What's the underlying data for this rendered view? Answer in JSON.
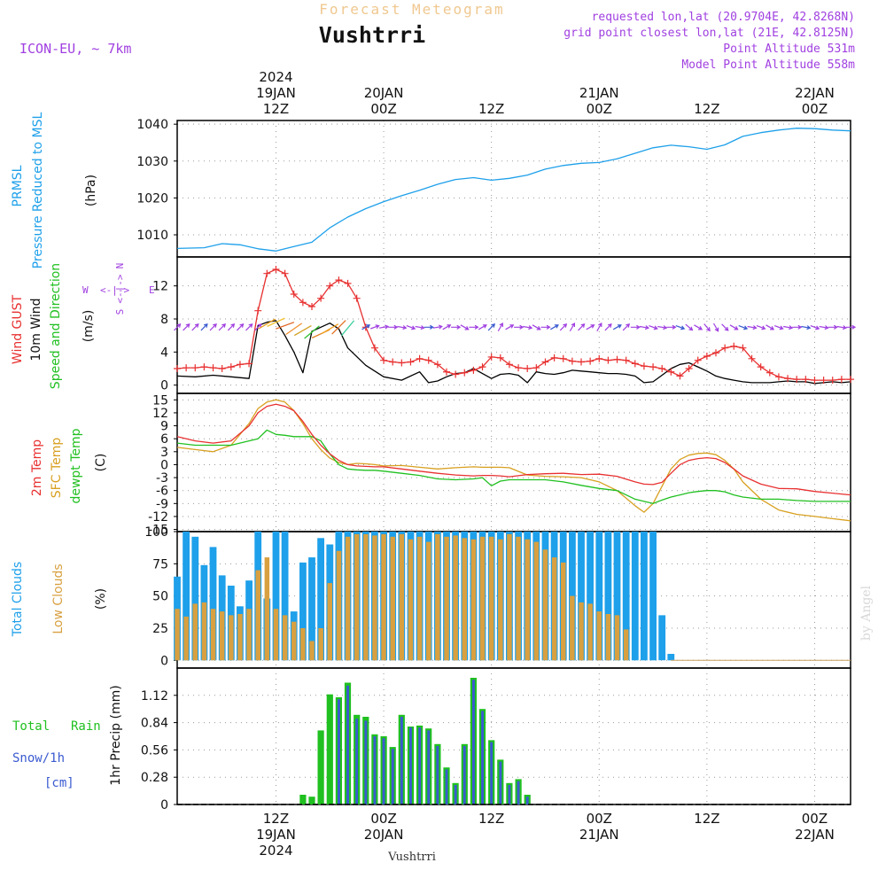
{
  "header": {
    "title": "Forecast Meteogram",
    "location": "Vushtrri",
    "model": "ICON-EU, ~ 7km",
    "requested": "requested lon,lat (20.9704E, 42.8268N)",
    "grid_point": "grid point closest lon,lat (21E, 42.8125N)",
    "point_altitude": "Point Altitude 531m",
    "model_altitude": "Model Point Altitude 558m",
    "footer_location": "Vushtrri",
    "credit": "by Angel"
  },
  "time_axis": {
    "top_labels": [
      {
        "h": 12,
        "lines": [
          "2024",
          "19JAN",
          "12Z"
        ]
      },
      {
        "h": 24,
        "lines": [
          "20JAN",
          "00Z"
        ]
      },
      {
        "h": 36,
        "lines": [
          "12Z"
        ]
      },
      {
        "h": 48,
        "lines": [
          "21JAN",
          "00Z"
        ]
      },
      {
        "h": 60,
        "lines": [
          "12Z"
        ]
      },
      {
        "h": 72,
        "lines": [
          "22JAN",
          "00Z"
        ]
      }
    ],
    "bottom_labels": [
      {
        "h": 12,
        "lines": [
          "12Z",
          "19JAN",
          "2024"
        ]
      },
      {
        "h": 24,
        "lines": [
          "00Z",
          "20JAN"
        ]
      },
      {
        "h": 36,
        "lines": [
          "12Z"
        ]
      },
      {
        "h": 48,
        "lines": [
          "00Z",
          "21JAN"
        ]
      },
      {
        "h": 60,
        "lines": [
          "12Z"
        ]
      },
      {
        "h": 72,
        "lines": [
          "00Z",
          "22JAN"
        ]
      }
    ]
  },
  "panels": {
    "pressure": {
      "label1": "PRMSL",
      "label2": "Pressure Reduced to MSL",
      "unit": "(hPa)",
      "ticks": [
        "1010",
        "1020",
        "1030",
        "1040"
      ]
    },
    "wind": {
      "label_gust": "Wind GUST",
      "label_wind": "10m Wind",
      "label_dir": "Speed and Direction",
      "unit": "(m/s)",
      "ticks": [
        "0",
        "4",
        "8",
        "12"
      ],
      "compass": {
        "n": "N",
        "s": "S",
        "w": "W",
        "e": "E"
      }
    },
    "temp": {
      "label_2m": "2m Temp",
      "label_sfc": "SFC Temp",
      "label_dew": "dewpt Temp",
      "unit": "(C)",
      "ticks": [
        "-15",
        "-12",
        "-9",
        "-6",
        "-3",
        "0",
        "3",
        "6",
        "9",
        "12",
        "15"
      ]
    },
    "clouds": {
      "label_total": "Total Clouds",
      "label_low": "Low Clouds",
      "unit": "(%)",
      "ticks": [
        "0",
        "25",
        "50",
        "75",
        "100"
      ]
    },
    "precip": {
      "label_total": "Total",
      "label_rain": "Rain",
      "label_snow": "Snow/1h",
      "label_cm": "[cm]",
      "unit": "1hr Precip (mm)",
      "ticks": [
        "0",
        "0.28",
        "0.56",
        "0.84",
        "1.12"
      ]
    }
  },
  "colors": {
    "pressure": "#1ea0ea",
    "gust": "#e83030",
    "wind": "#000000",
    "t2m": "#e83030",
    "sfc": "#d8a020",
    "dew": "#20c020",
    "total_cloud": "#1ea0ea",
    "low_cloud": "#d8a040",
    "precip_total": "#20c020",
    "snow": "#3a5ad0",
    "purple": "#a040e0",
    "grid": "#9a9a9a"
  },
  "chart_data": {
    "type": "line",
    "x_unit": "forecast hour from 19JAN 00Z",
    "x_range": [
      1,
      76
    ],
    "pressure": {
      "ylim": [
        1004,
        1041
      ],
      "x": [
        1,
        4,
        6,
        8,
        10,
        12,
        14,
        16,
        18,
        20,
        22,
        24,
        26,
        28,
        30,
        32,
        34,
        36,
        38,
        40,
        42,
        44,
        46,
        48,
        50,
        52,
        54,
        56,
        58,
        60,
        62,
        64,
        66,
        68,
        70,
        72,
        74,
        76
      ],
      "values": [
        1006.3,
        1006.5,
        1007.6,
        1007.3,
        1006.2,
        1005.6,
        1006.8,
        1008.0,
        1011.9,
        1014.8,
        1017.1,
        1019.0,
        1020.6,
        1022.1,
        1023.7,
        1025.0,
        1025.5,
        1024.8,
        1025.3,
        1026.2,
        1027.8,
        1028.8,
        1029.4,
        1029.6,
        1030.6,
        1032.1,
        1033.6,
        1034.3,
        1033.9,
        1033.2,
        1034.4,
        1036.7,
        1037.7,
        1038.4,
        1038.9,
        1038.8,
        1038.4,
        1038.2
      ]
    },
    "wind": {
      "ylim": [
        -1,
        15.5
      ],
      "gust_x": [
        1,
        2,
        3,
        4,
        5,
        6,
        7,
        8,
        9,
        10,
        11,
        12,
        13,
        14,
        15,
        16,
        17,
        18,
        19,
        20,
        21,
        22,
        23,
        24,
        25,
        26,
        27,
        28,
        29,
        30,
        31,
        32,
        33,
        34,
        35,
        36,
        37,
        38,
        39,
        40,
        41,
        42,
        43,
        44,
        45,
        46,
        47,
        48,
        49,
        50,
        51,
        52,
        53,
        54,
        55,
        56,
        57,
        58,
        59,
        60,
        61,
        62,
        63,
        64,
        65,
        66,
        67,
        68,
        69,
        70,
        71,
        72,
        73,
        74,
        75,
        76
      ],
      "gust": [
        2.0,
        2.1,
        2.1,
        2.2,
        2.1,
        2.0,
        2.2,
        2.5,
        2.6,
        9.0,
        13.5,
        14.0,
        13.5,
        11.0,
        10.0,
        9.5,
        10.5,
        12.0,
        12.7,
        12.3,
        10.5,
        7.0,
        4.5,
        3.0,
        2.8,
        2.7,
        2.8,
        3.2,
        3.0,
        2.5,
        1.6,
        1.3,
        1.5,
        1.8,
        2.2,
        3.4,
        3.3,
        2.5,
        2.1,
        2.0,
        2.1,
        2.8,
        3.3,
        3.2,
        2.9,
        2.8,
        2.9,
        3.2,
        3.0,
        3.1,
        3.0,
        2.6,
        2.3,
        2.2,
        2.0,
        1.6,
        1.1,
        2.0,
        3.0,
        3.5,
        3.9,
        4.5,
        4.7,
        4.5,
        3.2,
        2.2,
        1.5,
        1.0,
        0.8,
        0.7,
        0.7,
        0.6,
        0.6,
        0.6,
        0.7,
        0.7
      ],
      "wind_x": [
        1,
        3,
        5,
        7,
        9,
        10,
        11,
        12,
        13,
        14,
        15,
        16,
        17,
        18,
        19,
        20,
        22,
        24,
        26,
        28,
        29,
        30,
        31,
        32,
        33,
        34,
        35,
        36,
        37,
        38,
        39,
        40,
        41,
        42,
        43,
        44,
        45,
        46,
        47,
        48,
        49,
        50,
        51,
        52,
        53,
        54,
        55,
        56,
        57,
        58,
        59,
        60,
        61,
        62,
        63,
        64,
        65,
        66,
        67,
        68,
        69,
        70,
        71,
        72,
        73,
        74,
        75,
        76
      ],
      "wind": [
        1.1,
        1.0,
        1.2,
        1.0,
        0.8,
        7.2,
        7.6,
        7.8,
        6.0,
        4.0,
        1.5,
        6.5,
        7.0,
        7.5,
        6.8,
        4.5,
        2.4,
        1.0,
        0.6,
        1.6,
        0.3,
        0.5,
        1.0,
        1.4,
        1.5,
        2.0,
        1.4,
        0.8,
        1.3,
        1.4,
        1.2,
        0.3,
        1.6,
        1.4,
        1.3,
        1.5,
        1.8,
        1.7,
        1.6,
        1.5,
        1.4,
        1.4,
        1.3,
        1.1,
        0.3,
        0.4,
        1.2,
        2.0,
        2.5,
        2.7,
        2.2,
        1.7,
        1.1,
        0.8,
        0.6,
        0.4,
        0.3,
        0.3,
        0.3,
        0.4,
        0.5,
        0.4,
        0.4,
        0.2,
        0.3,
        0.4,
        0.3,
        0.4
      ],
      "arrows_x": [
        1,
        2,
        3,
        4,
        5,
        6,
        7,
        8,
        9,
        10,
        22,
        23,
        24,
        25,
        26,
        27,
        28,
        29,
        30,
        31,
        32,
        33,
        34,
        35,
        36,
        37,
        38,
        39,
        40,
        41,
        42,
        43,
        44,
        45,
        46,
        47,
        48,
        49,
        50,
        51,
        52,
        53,
        54,
        55,
        56,
        57,
        58,
        59,
        60,
        61,
        62,
        63,
        64,
        65,
        66,
        67,
        68,
        69,
        70,
        71,
        72,
        73,
        74,
        75,
        76
      ],
      "arrows_dir": [
        45,
        45,
        45,
        45,
        45,
        45,
        45,
        45,
        45,
        45,
        60,
        70,
        80,
        90,
        100,
        110,
        100,
        90,
        80,
        60,
        90,
        120,
        90,
        60,
        45,
        30,
        60,
        90,
        100,
        120,
        90,
        60,
        45,
        30,
        45,
        60,
        30,
        45,
        60,
        45,
        90,
        100,
        110,
        100,
        90,
        110,
        130,
        120,
        140,
        150,
        135,
        120,
        110,
        100,
        110,
        120,
        110,
        100,
        90,
        100,
        110,
        100,
        90,
        100,
        90
      ]
    },
    "temp": {
      "ylim": [
        -15.5,
        16.5
      ],
      "x": [
        1,
        3,
        5,
        7,
        9,
        10,
        11,
        12,
        13,
        14,
        15,
        16,
        17,
        18,
        19,
        20,
        21,
        22,
        23,
        24,
        26,
        28,
        30,
        32,
        34,
        35,
        36,
        37,
        38,
        40,
        42,
        44,
        46,
        48,
        50,
        52,
        53,
        54,
        55,
        56,
        57,
        58,
        59,
        60,
        61,
        62,
        63,
        64,
        66,
        68,
        70,
        72,
        74,
        76
      ],
      "t2m": [
        6.5,
        5.5,
        5.0,
        5.5,
        9.0,
        12.0,
        13.5,
        14.0,
        13.5,
        12.5,
        10.0,
        7.0,
        4.5,
        2.5,
        1.0,
        0.0,
        -0.3,
        -0.4,
        -0.5,
        -0.5,
        -1.0,
        -1.5,
        -2.0,
        -2.4,
        -2.6,
        -2.5,
        -2.5,
        -2.6,
        -2.8,
        -2.3,
        -2.1,
        -2.0,
        -2.3,
        -2.2,
        -2.7,
        -4.0,
        -4.5,
        -4.6,
        -4.1,
        -2.0,
        0.0,
        1.0,
        1.4,
        1.6,
        1.4,
        0.5,
        -1.0,
        -2.6,
        -4.5,
        -5.5,
        -5.6,
        -6.2,
        -6.6,
        -7.0
      ],
      "sfc": [
        4.0,
        3.5,
        3.0,
        4.5,
        9.5,
        13.0,
        14.5,
        15.0,
        14.5,
        12.5,
        9.5,
        6.0,
        3.5,
        1.5,
        0.5,
        0.0,
        0.3,
        0.2,
        0.0,
        -0.3,
        -0.2,
        -0.6,
        -1.0,
        -0.7,
        -0.5,
        -0.6,
        -0.6,
        -0.6,
        -0.7,
        -2.4,
        -2.7,
        -2.8,
        -3.0,
        -4.0,
        -6.0,
        -9.5,
        -11.0,
        -9.0,
        -5.0,
        -1.0,
        1.2,
        2.2,
        2.6,
        2.7,
        2.3,
        1.0,
        -1.0,
        -4.0,
        -8.0,
        -10.5,
        -11.5,
        -12.0,
        -12.5,
        -13.0
      ],
      "dew": [
        5.0,
        4.5,
        4.5,
        4.5,
        5.5,
        6.0,
        8.0,
        7.0,
        6.8,
        6.5,
        6.5,
        6.5,
        5.5,
        2.5,
        0.0,
        -1.0,
        -1.2,
        -1.3,
        -1.3,
        -1.5,
        -2.0,
        -2.5,
        -3.3,
        -3.5,
        -3.3,
        -3.0,
        -4.9,
        -3.8,
        -3.5,
        -3.5,
        -3.5,
        -4.0,
        -4.8,
        -5.5,
        -6.0,
        -8.0,
        -8.5,
        -9.0,
        -8.2,
        -7.5,
        -7.0,
        -6.5,
        -6.2,
        -6.0,
        -6.0,
        -6.3,
        -7.0,
        -7.5,
        -8.0,
        -8.0,
        -8.3,
        -8.5,
        -8.5,
        -8.5
      ]
    },
    "clouds": {
      "ylim": [
        -6,
        100
      ],
      "x": [
        1,
        2,
        3,
        4,
        5,
        6,
        7,
        8,
        9,
        10,
        11,
        12,
        13,
        14,
        15,
        16,
        17,
        18,
        19,
        20,
        21,
        22,
        23,
        24,
        25,
        26,
        27,
        28,
        29,
        30,
        31,
        32,
        33,
        34,
        35,
        36,
        37,
        38,
        39,
        40,
        41,
        42,
        43,
        44,
        45,
        46,
        47,
        48,
        49,
        50,
        51,
        52,
        53,
        54,
        55,
        56,
        57,
        58,
        59,
        60,
        61,
        62,
        63,
        64,
        65,
        66,
        67,
        68,
        69,
        70,
        71,
        72,
        73,
        74,
        75,
        76
      ],
      "total": [
        65,
        100,
        96,
        74,
        88,
        66,
        58,
        42,
        62,
        100,
        48,
        100,
        100,
        38,
        76,
        80,
        95,
        90,
        100,
        100,
        100,
        100,
        100,
        100,
        100,
        100,
        100,
        100,
        100,
        100,
        100,
        100,
        100,
        100,
        100,
        100,
        100,
        100,
        100,
        100,
        100,
        100,
        100,
        100,
        100,
        100,
        100,
        100,
        100,
        100,
        100,
        100,
        100,
        100,
        35,
        5,
        0,
        0,
        0,
        0,
        0,
        0,
        0,
        0,
        0,
        0,
        0,
        0,
        0,
        0,
        0,
        0,
        0,
        0,
        0,
        0
      ],
      "low": [
        40,
        34,
        44,
        45,
        40,
        38,
        35,
        36,
        40,
        70,
        80,
        40,
        35,
        30,
        25,
        15,
        25,
        60,
        85,
        96,
        98,
        98,
        97,
        98,
        96,
        98,
        94,
        96,
        92,
        98,
        96,
        97,
        95,
        94,
        96,
        96,
        94,
        98,
        96,
        94,
        92,
        86,
        80,
        76,
        50,
        45,
        44,
        38,
        36,
        35,
        24,
        0,
        0,
        0,
        0,
        0,
        0,
        0,
        0,
        0,
        0,
        0,
        0,
        0,
        0,
        0,
        0,
        0,
        0,
        0,
        0,
        0,
        0,
        0,
        0,
        0
      ]
    },
    "precip": {
      "ylim": [
        0,
        1.4
      ],
      "x": [
        15,
        16,
        17,
        18,
        19,
        20,
        21,
        22,
        23,
        24,
        25,
        26,
        27,
        28,
        29,
        30,
        31,
        32,
        33,
        34,
        35,
        36,
        37,
        38,
        39,
        40,
        41,
        42
      ],
      "total": [
        0.1,
        0.08,
        0.76,
        1.13,
        1.1,
        1.25,
        0.92,
        0.9,
        0.72,
        0.7,
        0.59,
        0.92,
        0.8,
        0.81,
        0.78,
        0.62,
        0.38,
        0.22,
        0.62,
        1.3,
        0.98,
        0.66,
        0.46,
        0.22,
        0.26,
        0.1,
        0,
        0
      ],
      "snow": [
        0,
        0,
        0,
        0,
        1.08,
        1.22,
        0.88,
        0.86,
        0.7,
        0.68,
        0.57,
        0.9,
        0.79,
        0.79,
        0.76,
        0.6,
        0.36,
        0.2,
        0.6,
        1.28,
        0.96,
        0.64,
        0.44,
        0.2,
        0.24,
        0.08,
        0,
        0
      ]
    }
  }
}
